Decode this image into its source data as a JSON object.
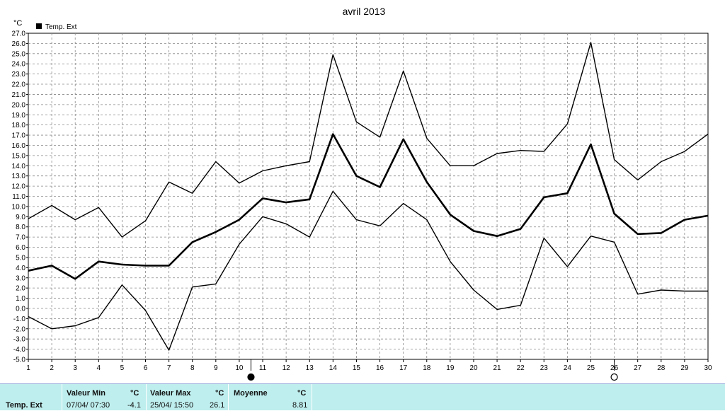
{
  "chart_data": {
    "type": "line",
    "title": "avril 2013",
    "ylabel": "°C",
    "legend": "Temp. Ext",
    "legend_position": "top-left",
    "grid": true,
    "xlim": [
      1,
      30
    ],
    "ylim": [
      -5,
      27
    ],
    "x": [
      1,
      2,
      3,
      4,
      5,
      6,
      7,
      8,
      9,
      10,
      11,
      12,
      13,
      14,
      15,
      16,
      17,
      18,
      19,
      20,
      21,
      22,
      23,
      24,
      25,
      26,
      27,
      28,
      29,
      30
    ],
    "x_tick_labels": [
      "1",
      "2",
      "3",
      "4",
      "5",
      "6",
      "7",
      "8",
      "9",
      "10",
      "11",
      "12",
      "13",
      "14",
      "15",
      "16",
      "17",
      "18",
      "19",
      "20",
      "21",
      "22",
      "23",
      "24",
      "25",
      "26",
      "27",
      "28",
      "29",
      "30"
    ],
    "y_tick_labels": [
      "27.0",
      "26.0",
      "25.0",
      "24.0",
      "23.0",
      "22.0",
      "21.0",
      "20.0",
      "19.0",
      "18.0",
      "17.0",
      "16.0",
      "15.0",
      "14.0",
      "13.0",
      "12.0",
      "11.0",
      "10.0",
      "9.0",
      "8.0",
      "7.0",
      "6.0",
      "5.0",
      "4.0",
      "3.0",
      "2.0",
      "1.0",
      "0.0",
      "-1.0",
      "-2.0",
      "-3.0",
      "-4.0",
      "-5.0"
    ],
    "series": [
      {
        "name": "",
        "role": "max",
        "values": [
          8.8,
          10.1,
          8.7,
          9.9,
          7.0,
          8.6,
          12.4,
          11.3,
          14.4,
          12.3,
          13.5,
          14.0,
          14.4,
          24.9,
          18.3,
          16.8,
          23.3,
          16.7,
          14.0,
          14.0,
          15.2,
          15.5,
          15.4,
          18.1,
          26.1,
          14.6,
          12.6,
          14.4,
          15.4,
          17.1
        ]
      },
      {
        "name": "Temp. Ext",
        "role": "mean",
        "values": [
          3.7,
          4.2,
          2.9,
          4.6,
          4.3,
          4.2,
          4.2,
          6.5,
          7.5,
          8.7,
          10.8,
          10.4,
          10.7,
          17.1,
          13.0,
          11.9,
          16.6,
          12.4,
          9.2,
          7.6,
          7.1,
          7.8,
          10.9,
          11.3,
          16.1,
          9.3,
          7.3,
          7.4,
          8.7,
          9.1
        ]
      },
      {
        "name": "",
        "role": "min",
        "values": [
          -0.8,
          -2.0,
          -1.7,
          -0.9,
          2.3,
          -0.2,
          -4.1,
          2.1,
          2.4,
          6.3,
          9.0,
          8.3,
          7.0,
          11.5,
          8.7,
          8.1,
          10.3,
          8.7,
          4.6,
          1.8,
          -0.1,
          0.3,
          6.9,
          4.1,
          7.1,
          6.5,
          1.4,
          1.8,
          1.7,
          1.7
        ]
      }
    ],
    "markers": [
      {
        "symbol": "new-moon",
        "x": 10.5
      },
      {
        "symbol": "full-moon",
        "x": 26
      }
    ],
    "colors": {
      "line": "#000000",
      "grid": "#888888",
      "footer_bg": "#bfeeee"
    }
  },
  "footer": {
    "row_label": "Temp. Ext",
    "min_header": "Valeur Min",
    "min_unit": "°C",
    "min_date": "07/04/  07:30",
    "min_value": "-4.1",
    "max_header": "Valeur Max",
    "max_unit": "°C",
    "max_date": "25/04/  15:50",
    "max_value": "26.1",
    "avg_header": "Moyenne",
    "avg_unit": "°C",
    "avg_value": "8.81"
  }
}
